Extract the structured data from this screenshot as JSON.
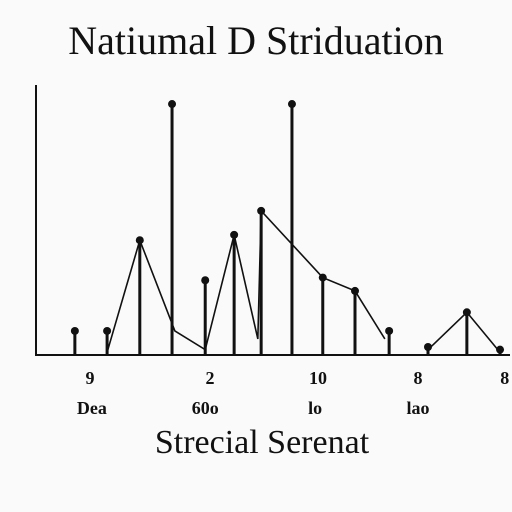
{
  "chart_data": {
    "type": "stem",
    "title": "Natiumal D Striduation",
    "x_label": "Strecial Serenat",
    "color": "#111111",
    "xlim": [
      0,
      100
    ],
    "ylim": [
      0,
      10
    ],
    "xticks": [
      {
        "value": 11.4,
        "label": "9"
      },
      {
        "value": 36.7,
        "label": "2"
      },
      {
        "value": 59.5,
        "label": "10"
      },
      {
        "value": 80.6,
        "label": "8"
      },
      {
        "value": 98.9,
        "label": "8"
      }
    ],
    "xtick_sublabels": [
      {
        "value": 11.8,
        "label": "Dea"
      },
      {
        "value": 35.7,
        "label": "60o"
      },
      {
        "value": 58.9,
        "label": "lo"
      },
      {
        "value": 80.6,
        "label": "lao"
      }
    ],
    "x": [
      8.2,
      15,
      21.9,
      28.7,
      35.7,
      41.8,
      47.5,
      54,
      60.5,
      67.3,
      74.5,
      82.7,
      90.9,
      97.9
    ],
    "values": [
      0.9,
      0.9,
      4.3,
      9.4,
      2.8,
      4.5,
      5.4,
      9.4,
      2.9,
      2.4,
      0.9,
      0.3,
      1.6,
      0.2
    ],
    "lines": [
      {
        "x": [
          15,
          21.9,
          29.3,
          35.7,
          41.8,
          46.8,
          47.5,
          60.5,
          67.3,
          73.6
        ],
        "values": [
          0.1,
          4.3,
          0.9,
          0.2,
          4.5,
          0.6,
          5.4,
          2.9,
          2.4,
          0.6
        ]
      },
      {
        "x": [
          82.7,
          90.9,
          97.9
        ],
        "values": [
          0.2,
          1.6,
          0.1
        ]
      }
    ]
  }
}
